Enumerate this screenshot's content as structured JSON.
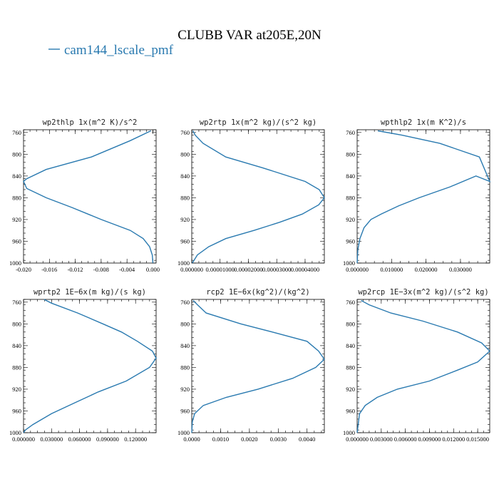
{
  "figure": {
    "title": "CLUBB VAR at205E,20N",
    "legend_label": "cam144_lscale_pmf",
    "series_color": "#2a7ab0"
  },
  "chart_data": [
    {
      "type": "line",
      "title": "wp2thlp  1x(m^2 K)/s^2",
      "series": [
        {
          "name": "cam144_lscale_pmf",
          "x": [
            -0.0003,
            -0.0035,
            -0.0095,
            -0.0165,
            -0.0195,
            -0.02,
            -0.0195,
            -0.0165,
            -0.0125,
            -0.008,
            -0.0035,
            -0.0015,
            -0.0005,
            -0.0001,
            0.0
          ],
          "y": [
            757,
            775,
            805,
            828,
            845,
            850,
            863,
            880,
            898,
            920,
            940,
            955,
            970,
            985,
            1000
          ]
        }
      ],
      "xlim": [
        -0.02,
        0.0005
      ],
      "ylim": [
        1000,
        755
      ],
      "xticks": [
        -0.02,
        -0.016,
        -0.012,
        -0.008,
        -0.004,
        0.0
      ],
      "xtick_labels": [
        "-0.020",
        "-0.016",
        "-0.012",
        "-0.008",
        "-0.004",
        "0.000"
      ],
      "yticks": [
        760,
        800,
        840,
        880,
        920,
        960,
        1000
      ],
      "ytick_labels": [
        "760",
        "800",
        "840",
        "880",
        "920",
        "960",
        "1000"
      ]
    },
    {
      "type": "line",
      "title": "wp2rtp  1x(m^2 kg)/(s^2 kg)",
      "series": [
        {
          "name": "cam144_lscale_pmf",
          "x": [
            4e-07,
            1.2e-06,
            4e-06,
            1.2e-05,
            2.5e-05,
            4e-05,
            4.5e-05,
            4.68e-05,
            4.48e-05,
            3.9e-05,
            3.1e-05,
            2.2e-05,
            1.2e-05,
            6e-06,
            2e-06,
            2e-07
          ],
          "y": [
            757,
            765,
            780,
            805,
            825,
            850,
            865,
            880,
            893,
            910,
            925,
            940,
            955,
            970,
            985,
            1000
          ]
        }
      ],
      "xlim": [
        0.0,
        4.68e-05
      ],
      "ylim": [
        1000,
        755
      ],
      "xticks": [
        0.0,
        1e-05,
        2e-05,
        3e-05,
        4e-05
      ],
      "xtick_labels": [
        "0.000000",
        "0.00001000",
        "0.00002000",
        "0.00003000",
        "0.00004000"
      ],
      "yticks": [
        760,
        800,
        840,
        880,
        920,
        960,
        1000
      ],
      "ytick_labels": [
        "760",
        "800",
        "840",
        "880",
        "920",
        "960",
        "1000"
      ]
    },
    {
      "type": "line",
      "title": "wpthlp2  1x(m K^2)/s",
      "series": [
        {
          "name": "cam144_lscale_pmf",
          "x": [
            0.006,
            0.013,
            0.024,
            0.0355,
            0.0385,
            0.0345,
            0.027,
            0.018,
            0.012,
            0.007,
            0.004,
            0.002,
            0.0008,
            0.0002,
            0.0
          ],
          "y": [
            757,
            765,
            780,
            805,
            850,
            840,
            860,
            880,
            895,
            910,
            920,
            935,
            955,
            975,
            1000
          ]
        }
      ],
      "xlim": [
        0.0,
        0.0385
      ],
      "ylim": [
        1000,
        755
      ],
      "xticks": [
        0.0,
        0.01,
        0.02,
        0.03
      ],
      "xtick_labels": [
        "0.000000",
        "0.010000",
        "0.020000",
        "0.030000"
      ],
      "yticks": [
        760,
        800,
        840,
        880,
        920,
        960,
        1000
      ],
      "ytick_labels": [
        "760",
        "800",
        "840",
        "880",
        "920",
        "960",
        "1000"
      ]
    },
    {
      "type": "line",
      "title": "wprtp2  1E−6x(m kg)/(s kg)",
      "series": [
        {
          "name": "cam144_lscale_pmf",
          "x": [
            0.022,
            0.03,
            0.058,
            0.085,
            0.105,
            0.122,
            0.138,
            0.142,
            0.135,
            0.11,
            0.08,
            0.055,
            0.03,
            0.01,
            0.002,
            0.0
          ],
          "y": [
            755,
            762,
            780,
            800,
            815,
            832,
            850,
            863,
            880,
            905,
            925,
            945,
            965,
            985,
            995,
            1000
          ]
        }
      ],
      "xlim": [
        0.0,
        0.142
      ],
      "ylim": [
        1000,
        755
      ],
      "xticks": [
        0.0,
        0.03,
        0.06,
        0.09,
        0.12
      ],
      "xtick_labels": [
        "0.000000",
        "0.030000",
        "0.060000",
        "0.090000",
        "0.120000"
      ],
      "yticks": [
        760,
        800,
        840,
        880,
        920,
        960,
        1000
      ],
      "ytick_labels": [
        "760",
        "800",
        "840",
        "880",
        "920",
        "960",
        "1000"
      ]
    },
    {
      "type": "line",
      "title": "rcp2  1E−6x(kg^2)/(kg^2)",
      "series": [
        {
          "name": "cam144_lscale_pmf",
          "x": [
            5e-05,
            0.0002,
            0.0005,
            0.0017,
            0.0028,
            0.004,
            0.0044,
            0.0046,
            0.0043,
            0.0035,
            0.0023,
            0.0012,
            0.0004,
            0.0001,
            2e-05,
            0.0
          ],
          "y": [
            757,
            765,
            780,
            800,
            815,
            832,
            850,
            865,
            880,
            900,
            920,
            935,
            950,
            965,
            980,
            1000
          ]
        }
      ],
      "xlim": [
        0.0,
        0.0046
      ],
      "ylim": [
        1000,
        755
      ],
      "xticks": [
        0.0,
        0.001,
        0.002,
        0.003,
        0.004
      ],
      "xtick_labels": [
        "0.0000",
        "0.0010",
        "0.0020",
        "0.0030",
        "0.0040"
      ],
      "yticks": [
        760,
        800,
        840,
        880,
        920,
        960,
        1000
      ],
      "ytick_labels": [
        "760",
        "800",
        "840",
        "880",
        "920",
        "960",
        "1000"
      ]
    },
    {
      "type": "line",
      "title": "wp2rcp  1E−3x(m^2 kg)/(s^2 kg)",
      "series": [
        {
          "name": "cam144_lscale_pmf",
          "x": [
            0.0005,
            0.0015,
            0.0042,
            0.0082,
            0.0125,
            0.0155,
            0.0165,
            0.015,
            0.0125,
            0.009,
            0.005,
            0.0025,
            0.001,
            0.0003,
            0.0
          ],
          "y": [
            757,
            765,
            780,
            795,
            815,
            835,
            850,
            870,
            885,
            905,
            920,
            935,
            950,
            965,
            1000
          ]
        }
      ],
      "xlim": [
        0.0,
        0.0165
      ],
      "ylim": [
        1000,
        755
      ],
      "xticks": [
        0.0,
        0.003,
        0.006,
        0.009,
        0.012,
        0.015
      ],
      "xtick_labels": [
        "0.000000",
        "0.003000",
        "0.006000",
        "0.009000",
        "0.012000",
        "0.015000"
      ],
      "yticks": [
        760,
        800,
        840,
        880,
        920,
        960,
        1000
      ],
      "ytick_labels": [
        "760",
        "800",
        "840",
        "880",
        "920",
        "960",
        "1000"
      ]
    }
  ]
}
